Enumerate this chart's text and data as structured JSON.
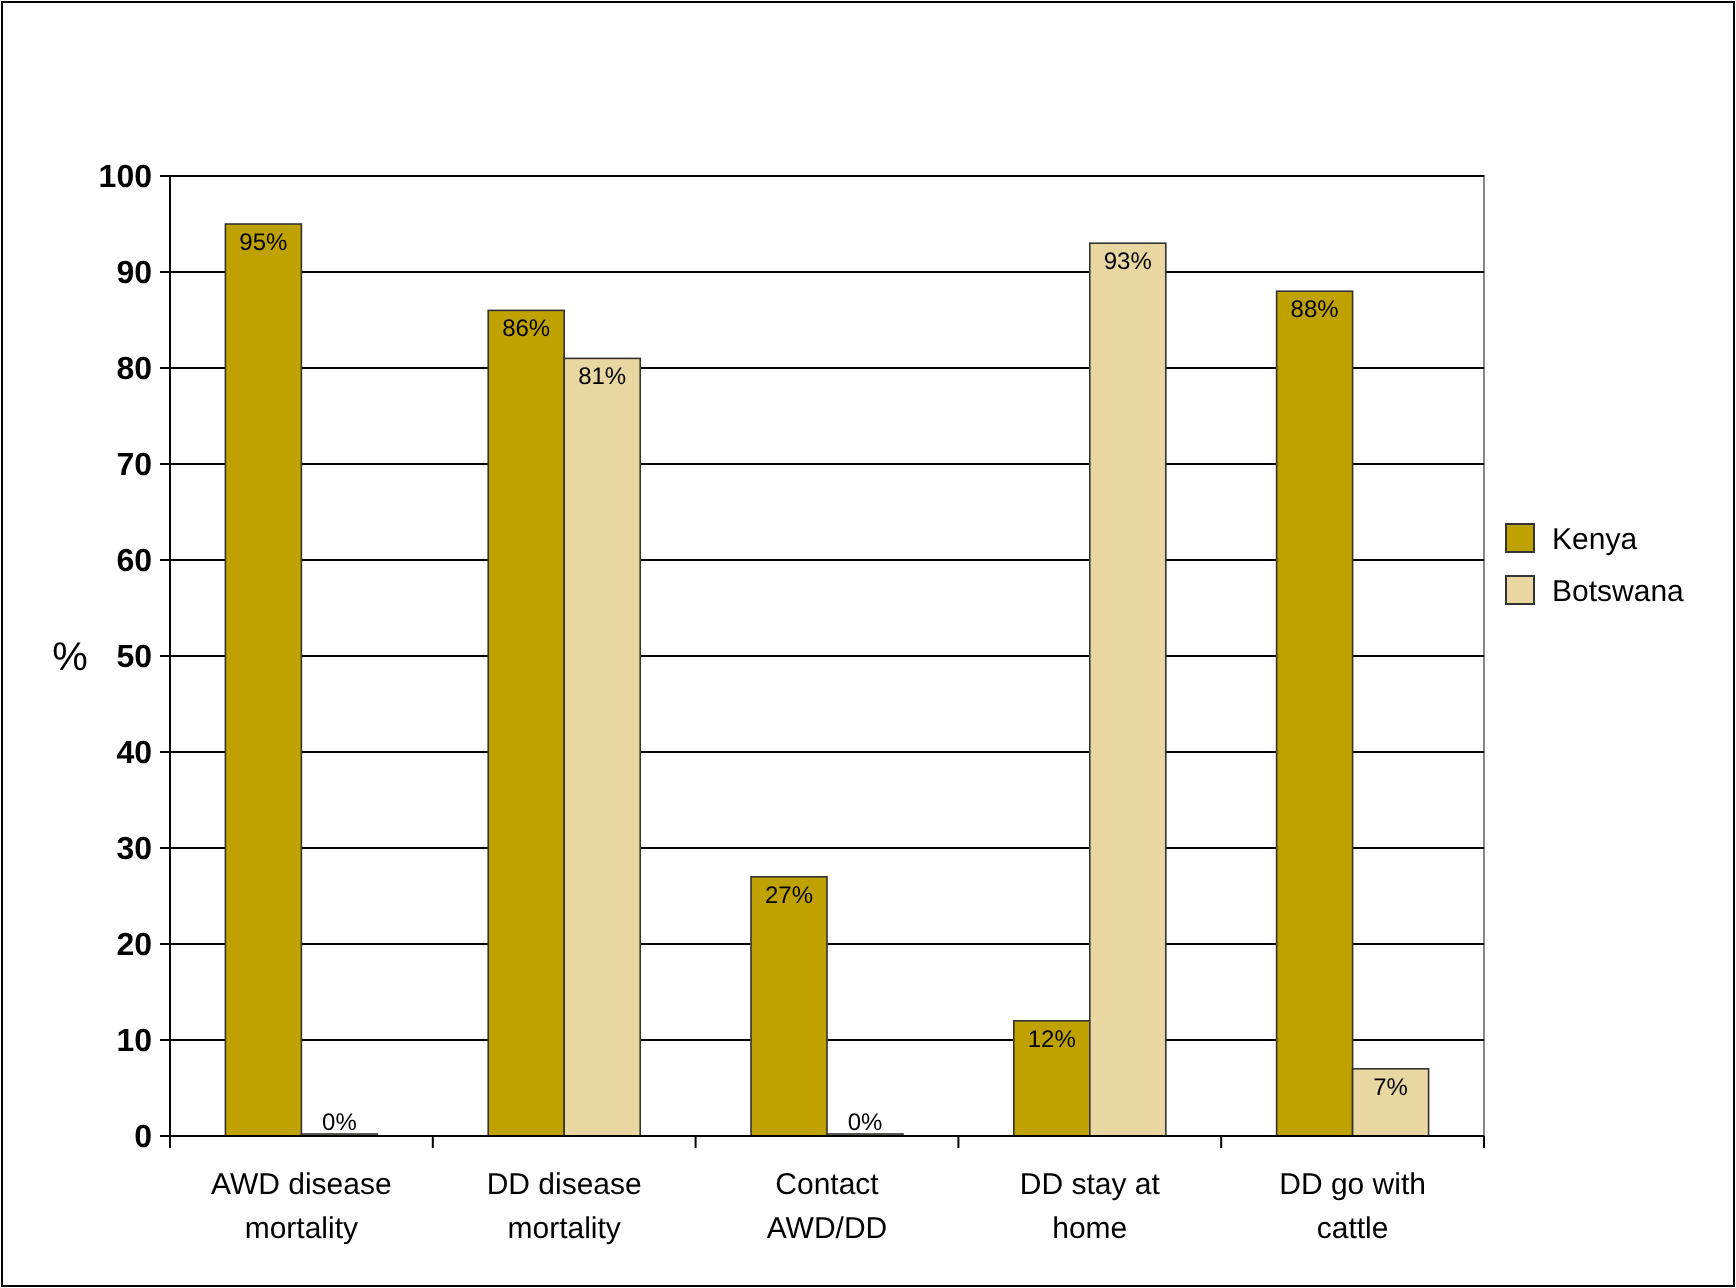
{
  "chart_data": {
    "type": "bar",
    "ylabel": "%",
    "categories": [
      "AWD disease mortality",
      "DD disease mortality",
      "Contact AWD/DD",
      "DD stay at home",
      "DD go with cattle"
    ],
    "series": [
      {
        "name": "Kenya",
        "color": "#bfa100",
        "values": [
          95,
          86,
          27,
          12,
          88
        ],
        "value_labels": [
          "95%",
          "86%",
          "27%",
          "12%",
          "88%"
        ]
      },
      {
        "name": "Botswana",
        "color": "#e8d7a0",
        "values": [
          0,
          81,
          0,
          93,
          7
        ],
        "value_labels": [
          "0%",
          "81%",
          "0%",
          "93%",
          "7%"
        ]
      }
    ],
    "ylim": [
      0,
      100
    ],
    "yticks": [
      0,
      10,
      20,
      30,
      40,
      50,
      60,
      70,
      80,
      90,
      100
    ],
    "grid": "y",
    "legend": "right"
  }
}
